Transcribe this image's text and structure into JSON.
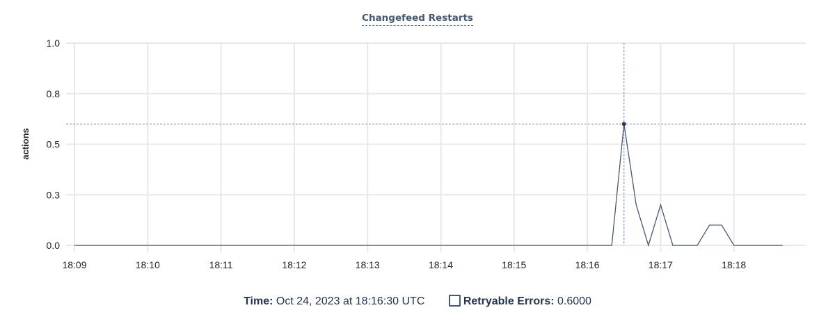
{
  "chart_data": {
    "type": "line",
    "title": "Changefeed Restarts",
    "ylabel": "actions",
    "xlabel": "",
    "ylim": [
      0,
      1.0
    ],
    "yticks": [
      0,
      0.25,
      0.5,
      0.75,
      1.0
    ],
    "ytick_labels": [
      "0.0",
      "0.3",
      "0.5",
      "0.8",
      "1.0"
    ],
    "xtick_labels": [
      "18:09",
      "18:10",
      "18:11",
      "18:12",
      "18:13",
      "18:14",
      "18:15",
      "18:16",
      "18:17",
      "18:18"
    ],
    "grid": true,
    "color": "#475872",
    "series": [
      {
        "name": "Retryable Errors",
        "x": [
          "18:09:00",
          "18:16:20",
          "18:16:30",
          "18:16:40",
          "18:16:50",
          "18:17:00",
          "18:17:10",
          "18:17:20",
          "18:17:30",
          "18:17:40",
          "18:17:50",
          "18:18:00",
          "18:18:10",
          "18:18:20",
          "18:18:30",
          "18:18:40"
        ],
        "values": [
          0,
          0,
          0.6,
          0.2,
          0,
          0.2,
          0,
          0,
          0,
          0.1,
          0.1,
          0,
          0,
          0,
          0,
          0
        ]
      }
    ],
    "hover": {
      "x": "18:16:30",
      "y": 0.6
    }
  },
  "legend": {
    "time_label": "Time:",
    "time_value": "Oct 24, 2023 at 18:16:30 UTC",
    "series_label": "Retryable Errors:",
    "series_value": "0.6000"
  }
}
